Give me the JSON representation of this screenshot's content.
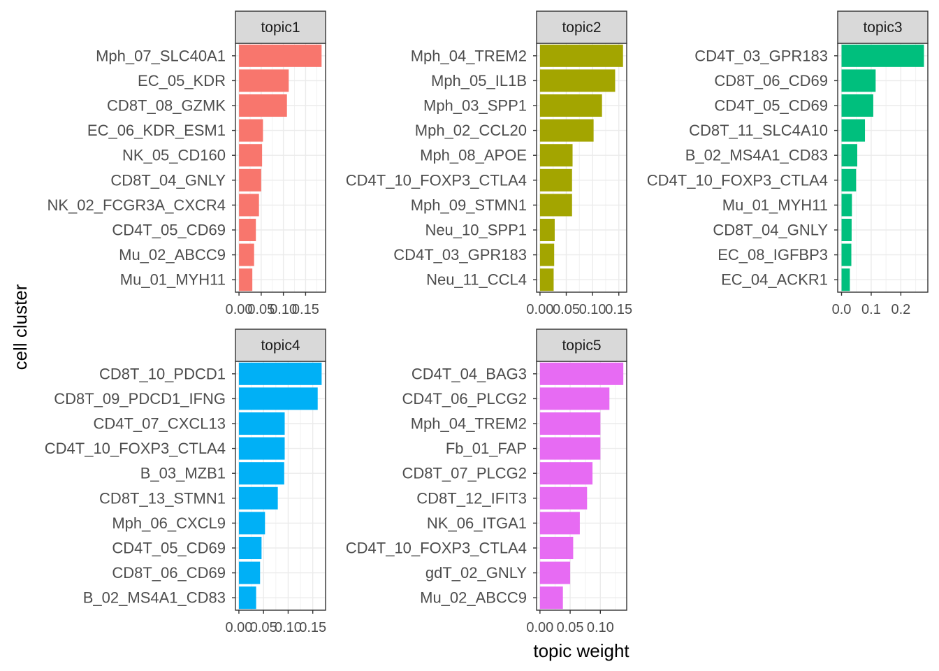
{
  "chart_data": {
    "type": "bar",
    "orientation": "horizontal",
    "xlabel": "topic weight",
    "ylabel": "cell cluster",
    "grid": true,
    "legend": "none",
    "panels": [
      {
        "name": "topic1",
        "color": "#F8766D",
        "categories": [
          "Mph_07_SLC40A1",
          "EC_05_KDR",
          "CD8T_08_GZMK",
          "EC_06_KDR_ESM1",
          "NK_05_CD160",
          "CD8T_04_GNLY",
          "NK_02_FCGR3A_CXCR4",
          "CD4T_05_CD69",
          "Mu_02_ABCC9",
          "Mu_01_MYH11"
        ],
        "values": [
          0.186,
          0.112,
          0.108,
          0.054,
          0.052,
          0.05,
          0.045,
          0.038,
          0.034,
          0.03
        ],
        "xlim": [
          -0.008,
          0.195
        ],
        "ticks": [
          0.0,
          0.05,
          0.1,
          0.15
        ],
        "tick_labels": [
          "0.00",
          "0.05",
          "0.10",
          "0.15"
        ]
      },
      {
        "name": "topic2",
        "color": "#A3A500",
        "categories": [
          "Mph_04_TREM2",
          "Mph_05_IL1B",
          "Mph_03_SPP1",
          "Mph_02_CCL20",
          "Mph_08_APOE",
          "CD4T_10_FOXP3_CTLA4",
          "Mph_09_STMN1",
          "Neu_10_SPP1",
          "CD4T_03_GPR183",
          "Neu_11_CCL4"
        ],
        "values": [
          0.158,
          0.143,
          0.118,
          0.102,
          0.062,
          0.061,
          0.061,
          0.028,
          0.027,
          0.026
        ],
        "xlim": [
          -0.0065,
          0.165
        ],
        "ticks": [
          0.0,
          0.05,
          0.1,
          0.15
        ],
        "tick_labels": [
          "0.00",
          "0.05",
          "0.10",
          "0.15"
        ]
      },
      {
        "name": "topic3",
        "color": "#00BF7D",
        "categories": [
          "CD4T_03_GPR183",
          "CD8T_06_CD69",
          "CD4T_05_CD69",
          "CD8T_11_SLC4A10",
          "B_02_MS4A1_CD83",
          "CD4T_10_FOXP3_CTLA4",
          "Mu_01_MYH11",
          "CD8T_04_GNLY",
          "EC_08_IGFBP3",
          "EC_04_ACKR1"
        ],
        "values": [
          0.278,
          0.115,
          0.107,
          0.079,
          0.053,
          0.049,
          0.035,
          0.034,
          0.033,
          0.028
        ],
        "xlim": [
          -0.013,
          0.291
        ],
        "ticks": [
          0.0,
          0.1,
          0.2
        ],
        "tick_labels": [
          "0.0",
          "0.1",
          "0.2"
        ]
      },
      {
        "name": "topic4",
        "color": "#00B0F6",
        "categories": [
          "CD8T_10_PDCD1",
          "CD8T_09_PDCD1_IFNG",
          "CD4T_07_CXCL13",
          "CD4T_10_FOXP3_CTLA4",
          "B_03_MZB1",
          "CD8T_13_STMN1",
          "Mph_06_CXCL9",
          "CD4T_05_CD69",
          "CD8T_06_CD69",
          "B_02_MS4A1_CD83"
        ],
        "values": [
          0.168,
          0.16,
          0.093,
          0.093,
          0.092,
          0.079,
          0.053,
          0.046,
          0.043,
          0.035
        ],
        "xlim": [
          -0.007,
          0.176
        ],
        "ticks": [
          0.0,
          0.05,
          0.1,
          0.15
        ],
        "tick_labels": [
          "0.00",
          "0.05",
          "0.10",
          "0.15"
        ]
      },
      {
        "name": "topic5",
        "color": "#E76BF3",
        "categories": [
          "CD4T_04_BAG3",
          "CD4T_06_PLCG2",
          "Mph_04_TREM2",
          "Fb_01_FAP",
          "CD8T_07_PLCG2",
          "CD8T_12_IFIT3",
          "NK_06_ITGA1",
          "CD4T_10_FOXP3_CTLA4",
          "gdT_02_GNLY",
          "Mu_02_ABCC9"
        ],
        "values": [
          0.138,
          0.115,
          0.1,
          0.1,
          0.087,
          0.078,
          0.066,
          0.055,
          0.05,
          0.038
        ],
        "xlim": [
          -0.0056,
          0.1436
        ],
        "ticks": [
          0.0,
          0.05,
          0.1
        ],
        "tick_labels": [
          "0.00",
          "0.05",
          "0.10"
        ]
      }
    ]
  }
}
